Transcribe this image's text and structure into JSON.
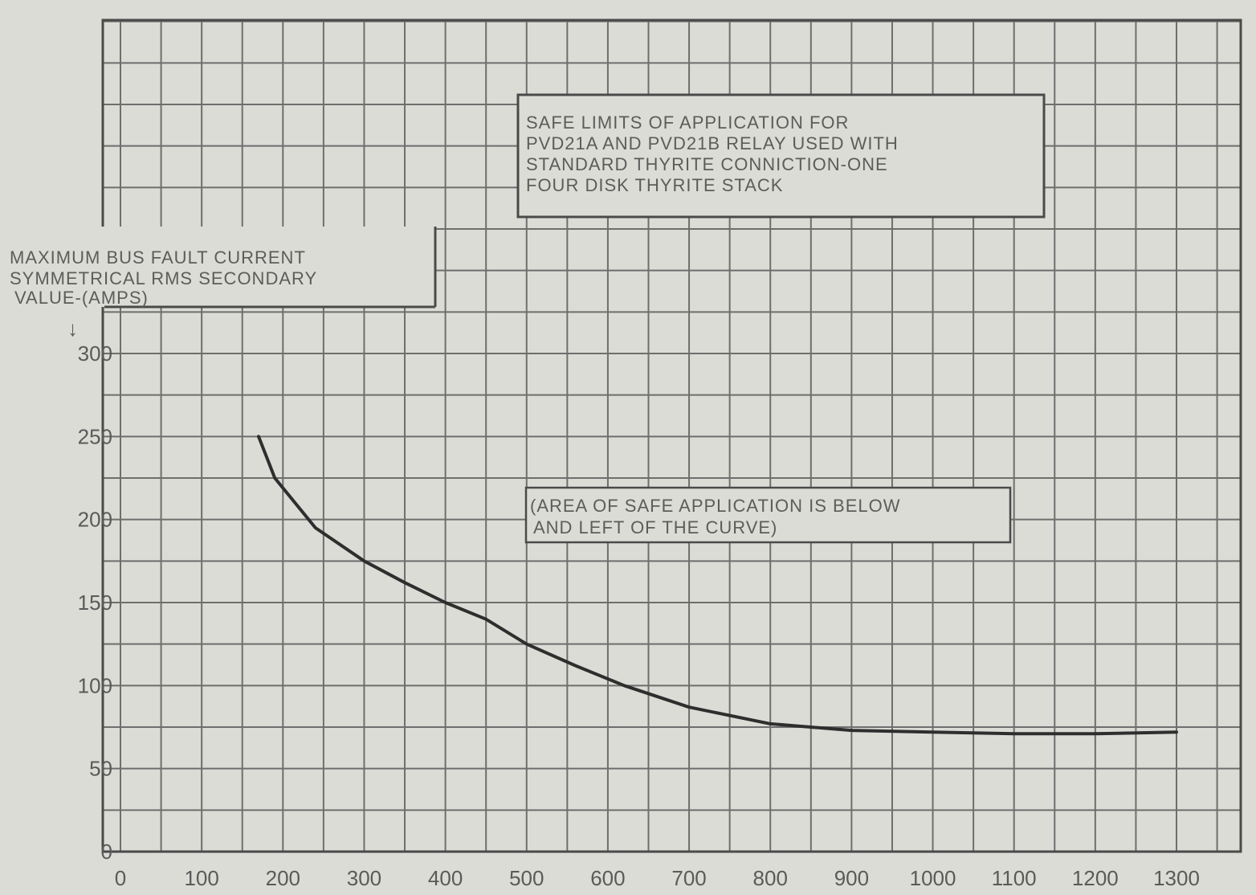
{
  "chart_data": {
    "type": "line",
    "title_box": {
      "lines": [
        "SAFE LIMITS OF APPLICATION FOR",
        "PVD21A AND PVD21B RELAY USED WITH",
        "STANDARD THYRITE CONNICTION-ONE",
        "FOUR DISK THYRITE STACK"
      ]
    },
    "ylabel_box": {
      "lines": [
        "MAXIMUM BUS FAULT CURRENT",
        "SYMMETRICAL RMS SECONDARY",
        "VALUE-(AMPS)"
      ],
      "arrow": "↓"
    },
    "annotation": {
      "lines": [
        "(AREA OF SAFE APPLICATION IS BELOW",
        "AND LEFT OF THE CURVE)"
      ]
    },
    "x_ticks": [
      "0",
      "100",
      "200",
      "300",
      "400",
      "500",
      "600",
      "700",
      "800",
      "900",
      "1000",
      "1100",
      "1200",
      "1300"
    ],
    "y_ticks": [
      "0",
      "50",
      "100",
      "150",
      "200",
      "250",
      "300"
    ],
    "xlim": [
      0,
      1300
    ],
    "ylim": [
      0,
      300
    ],
    "grid": true,
    "series": [
      {
        "color": "#2e2e2e",
        "x": [
          170,
          190,
          240,
          300,
          350,
          400,
          450,
          500,
          560,
          620,
          700,
          800,
          900,
          1000,
          1100,
          1200,
          1300
        ],
        "y": [
          250,
          225,
          195,
          175,
          162,
          150,
          140,
          125,
          112,
          100,
          87,
          77,
          73,
          72,
          71,
          71,
          72
        ]
      }
    ]
  }
}
